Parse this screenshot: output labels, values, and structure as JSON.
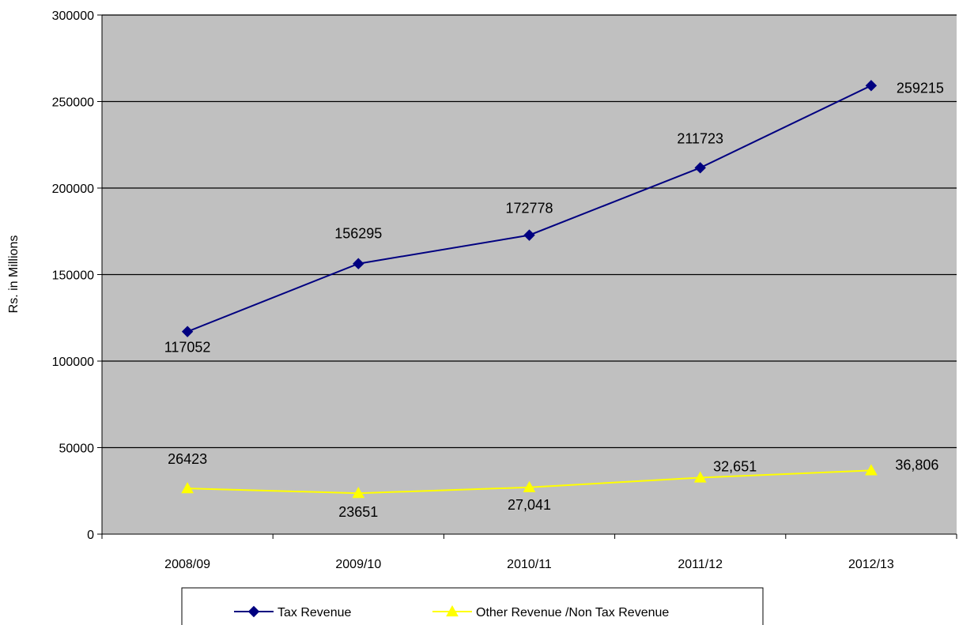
{
  "chart_data": {
    "type": "line",
    "title": "",
    "xlabel": "",
    "ylabel": "Rs. in Millions",
    "categories": [
      "2008/09",
      "2009/10",
      "2010/11",
      "2011/12",
      "2012/13"
    ],
    "ylim": [
      0,
      300000
    ],
    "yticks": [
      0,
      50000,
      100000,
      150000,
      200000,
      250000,
      300000
    ],
    "ytick_labels": [
      "0",
      "50000",
      "100000",
      "150000",
      "200000",
      "250000",
      "300000"
    ],
    "grid": true,
    "plot_background": "#c0c0c0",
    "legend_position": "bottom",
    "series": [
      {
        "name": "Tax Revenue",
        "values": [
          117052,
          156295,
          172778,
          211723,
          259215
        ],
        "labels": [
          "117052",
          "156295",
          "172778",
          "211723",
          "259215"
        ],
        "color": "#000080",
        "marker": "diamond"
      },
      {
        "name": "Other Revenue /Non Tax Revenue",
        "values": [
          26423,
          23651,
          27041,
          32651,
          36806
        ],
        "labels": [
          "26423",
          "23651",
          "27,041",
          "32,651",
          "36,806"
        ],
        "color": "#ffff00",
        "marker": "triangle"
      }
    ]
  }
}
